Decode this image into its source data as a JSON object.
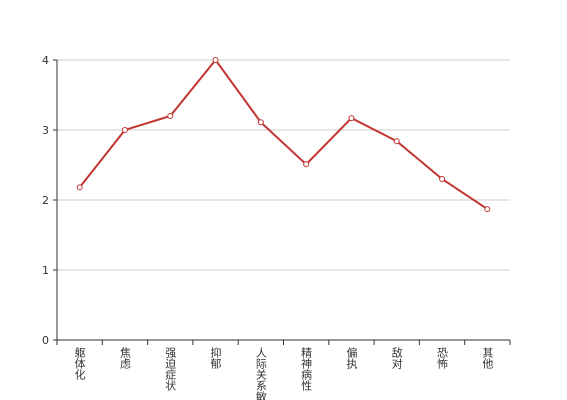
{
  "chart_data": {
    "type": "line",
    "categories": [
      "躯体化",
      "焦虑",
      "强迫症状",
      "抑郁",
      "人际关系敏感",
      "精神病性",
      "偏执",
      "敌对",
      "恐怖",
      "其他"
    ],
    "values": [
      2.18,
      3.0,
      3.2,
      4.0,
      3.11,
      2.51,
      3.17,
      2.84,
      2.3,
      1.87
    ],
    "color": "#c23531",
    "ylim": [
      0,
      4
    ],
    "yticks": [
      0,
      1,
      2,
      3,
      4
    ],
    "grid": true
  }
}
